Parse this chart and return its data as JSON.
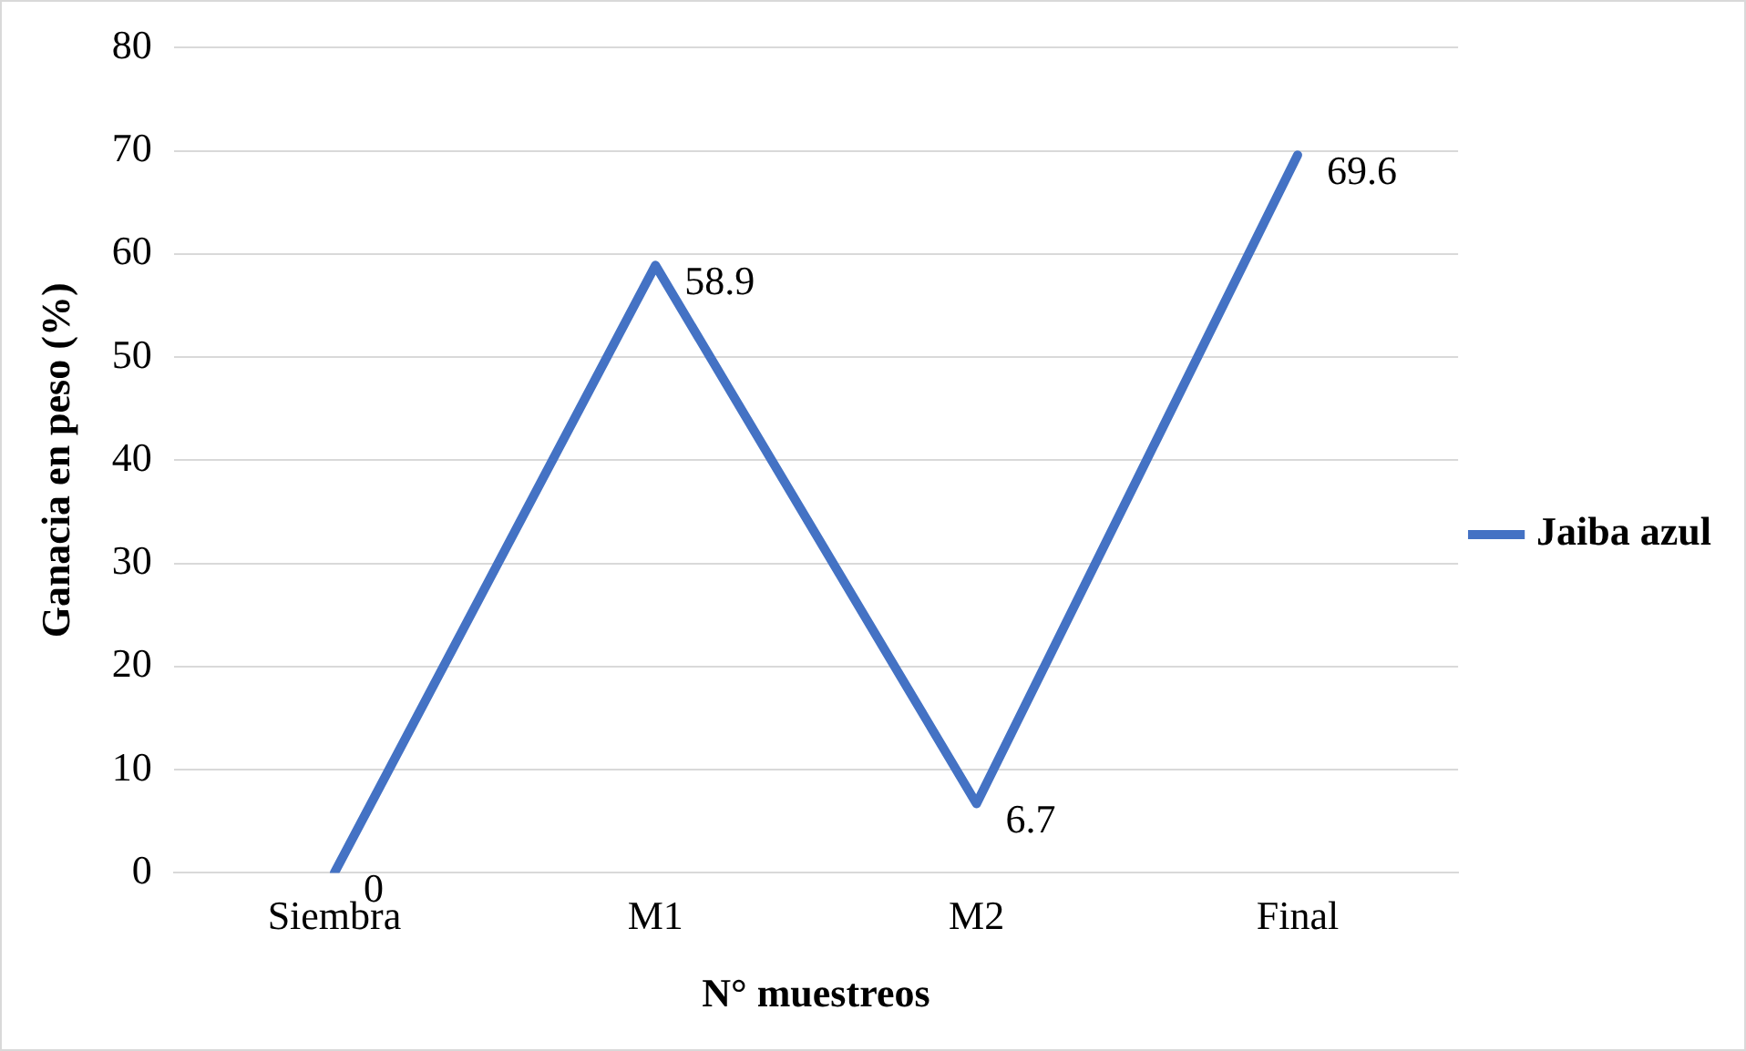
{
  "chart_data": {
    "type": "line",
    "xlabel": "N° muestreos",
    "ylabel": "Ganacia en peso (%)",
    "categories": [
      "Siembra",
      "M1",
      "M2",
      "Final"
    ],
    "series": [
      {
        "name": "Jaiba azul",
        "color": "#4472c4",
        "values": [
          0,
          58.9,
          6.7,
          69.6
        ]
      }
    ],
    "ylim": [
      0,
      80
    ],
    "yticks": [
      0,
      10,
      20,
      30,
      40,
      50,
      60,
      70,
      80
    ],
    "grid": "y",
    "legend": "right",
    "data_labels": true,
    "marker": "none",
    "line_style": "solid"
  }
}
